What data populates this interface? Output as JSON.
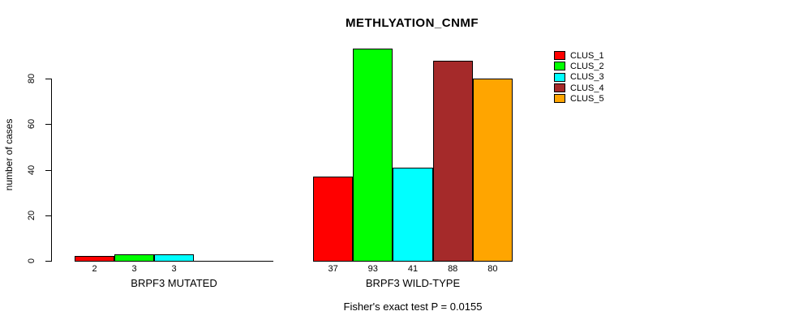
{
  "chart_data": {
    "type": "bar",
    "title": "METHLYATION_CNMF",
    "ylabel": "number of cases",
    "xlabel": "",
    "yticks": [
      0,
      20,
      40,
      60,
      80
    ],
    "ylim": [
      0,
      93
    ],
    "grid": false,
    "legend_position": "right",
    "series_names": [
      "CLUS_1",
      "CLUS_2",
      "CLUS_3",
      "CLUS_4",
      "CLUS_5"
    ],
    "series_colors": [
      "#ff0000",
      "#00ff00",
      "#00ffff",
      "#a52a2a",
      "#ffa500"
    ],
    "groups": [
      {
        "label": "BRPF3 MUTATED",
        "values": [
          2,
          3,
          3,
          0,
          0
        ],
        "value_labels": [
          "2",
          "3",
          "3",
          "",
          ""
        ]
      },
      {
        "label": "BRPF3 WILD-TYPE",
        "values": [
          37,
          93,
          41,
          88,
          80
        ],
        "value_labels": [
          "37",
          "93",
          "41",
          "88",
          "80"
        ]
      }
    ],
    "legend": [
      {
        "label": "CLUS_1",
        "color": "#ff0000"
      },
      {
        "label": "CLUS_2",
        "color": "#00ff00"
      },
      {
        "label": "CLUS_3",
        "color": "#00ffff"
      },
      {
        "label": "CLUS_4",
        "color": "#a52a2a"
      },
      {
        "label": "CLUS_5",
        "color": "#ffa500"
      }
    ],
    "annotation": "Fisher's exact test P = 0.0155"
  },
  "colors": {
    "background": "#ffffff",
    "axis": "#000000",
    "text": "#000000"
  }
}
